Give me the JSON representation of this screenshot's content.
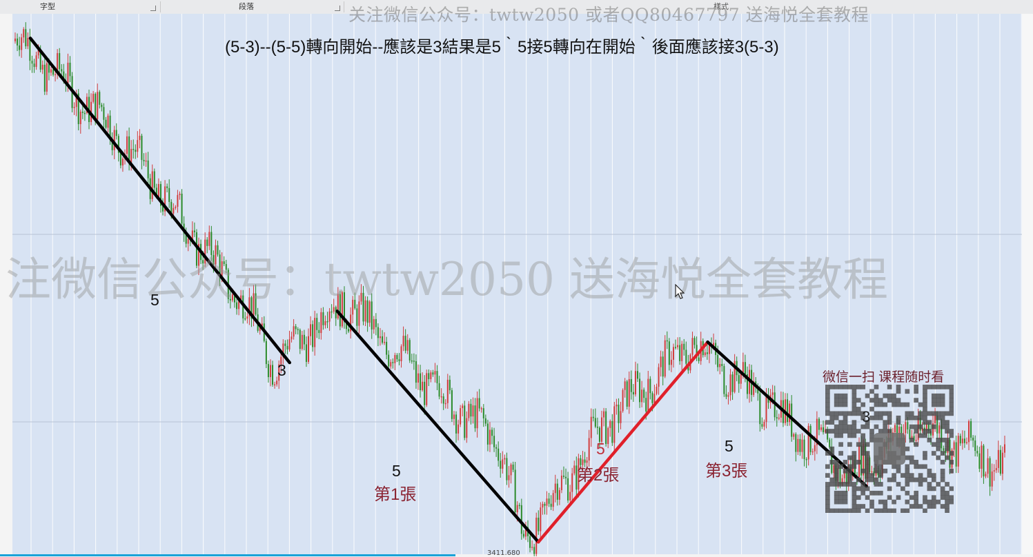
{
  "ribbon": {
    "groups": [
      "字型",
      "段落",
      "樣式"
    ]
  },
  "watermark": {
    "top": "关注微信公众号：twtw2050 或者QQ80467797 送海悦全套教程",
    "big": "注微信公众号：twtw2050 送海悦全套教程"
  },
  "title": "(5-3)--(5-5)轉向開始--應該是3結果是5｀5接5轉向在開始｀後面應該接3(5-3)",
  "annotations": {
    "wave1": "5",
    "wave2": "3",
    "wave3": "5",
    "wave3_tag": "第1張",
    "wave4": "5",
    "wave4_tag": "第2張",
    "wave5": "5",
    "wave5_tag": "第3張",
    "low_value": "3411.680"
  },
  "qr": {
    "caption": "微信一扫 课程随时看",
    "mid_label": "3"
  },
  "colors": {
    "chart_bg": "#d8e3f3",
    "candle_up": "#d23b3b",
    "candle_down": "#2a8a2a",
    "trend_black": "#000000",
    "trend_red": "#e0202a",
    "label_red": "#8a2230"
  },
  "chart_data": {
    "type": "line",
    "title": "(5-3)--(5-5)轉向開始--應該是3結果是5｀5接5轉向在開始｀後面應該接3(5-3)",
    "xlabel": "",
    "ylabel": "",
    "grid": true,
    "description_units": "bar index",
    "price_path": [
      {
        "x": 0,
        "y": 4390
      },
      {
        "x": 90,
        "y": 4220
      },
      {
        "x": 215,
        "y": 3880
      },
      {
        "x": 245,
        "y": 3760
      },
      {
        "x": 310,
        "y": 3880
      },
      {
        "x": 390,
        "y": 3720
      },
      {
        "x": 460,
        "y": 3600
      },
      {
        "x": 480,
        "y": 3411.68
      },
      {
        "x": 560,
        "y": 3650
      },
      {
        "x": 640,
        "y": 3800
      },
      {
        "x": 700,
        "y": 3700
      },
      {
        "x": 790,
        "y": 3540
      },
      {
        "x": 850,
        "y": 3640
      },
      {
        "x": 935,
        "y": 3560
      }
    ],
    "series": [
      {
        "name": "",
        "color": "#000000",
        "points": [
          [
            0,
            4390
          ],
          [
            245,
            3760
          ]
        ]
      },
      {
        "name": "",
        "color": "#000000",
        "points": [
          [
            290,
            3860
          ],
          [
            480,
            3411.68
          ]
        ]
      },
      {
        "name": "",
        "color": "#e0202a",
        "points": [
          [
            480,
            3411.68
          ],
          [
            640,
            3800
          ]
        ]
      },
      {
        "name": "",
        "color": "#000000",
        "points": [
          [
            640,
            3800
          ],
          [
            790,
            3520
          ]
        ]
      }
    ],
    "ylim": [
      3400,
      4420
    ],
    "xlim": [
      0,
      935
    ],
    "low_label": "3411.680"
  }
}
